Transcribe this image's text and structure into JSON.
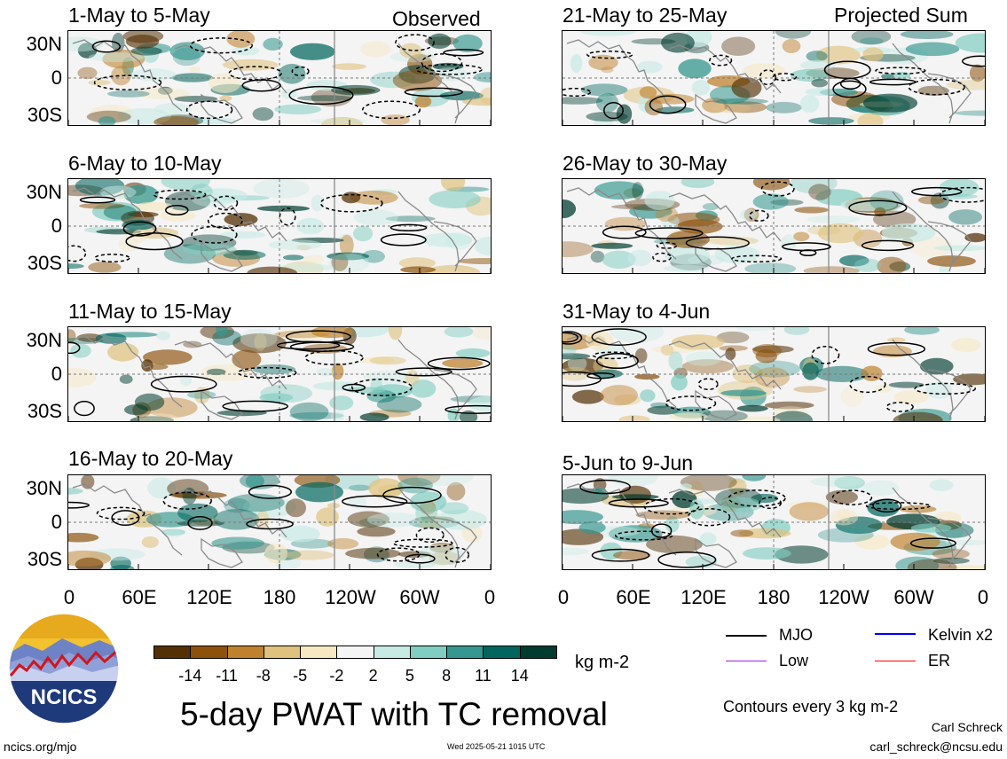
{
  "headers": {
    "observed": "Observed",
    "projected": "Projected Sum"
  },
  "panels_left": [
    {
      "title": "1-May to 5-May"
    },
    {
      "title": "6-May to 10-May"
    },
    {
      "title": "11-May to 15-May"
    },
    {
      "title": "16-May to 20-May"
    }
  ],
  "panels_right": [
    {
      "title": "21-May to 25-May"
    },
    {
      "title": "26-May to 30-May"
    },
    {
      "title": "31-May to 4-Jun"
    },
    {
      "title": "5-Jun to 9-Jun"
    }
  ],
  "y_ticks": [
    "30N",
    "0",
    "30S"
  ],
  "x_ticks": [
    "0",
    "60E",
    "120E",
    "180",
    "120W",
    "60W",
    "0"
  ],
  "colorbar": {
    "labels": [
      "-14",
      "-11",
      "-8",
      "-5",
      "-2",
      "2",
      "5",
      "8",
      "11",
      "14"
    ],
    "colors": [
      "#543005",
      "#8c510a",
      "#bf812d",
      "#dfc27d",
      "#f6e8c3",
      "#f5f5f5",
      "#c7eae5",
      "#80cdc1",
      "#35978f",
      "#01665e",
      "#003c30"
    ],
    "units": "kg m-2"
  },
  "logo": {
    "text": "NCICS"
  },
  "main_title": "5-day PWAT with TC removal",
  "legend": {
    "items": [
      {
        "label": "MJO",
        "color": "#000000"
      },
      {
        "label": "Kelvin x2",
        "color": "#0000ff"
      },
      {
        "label": "Low",
        "color": "#a020f0"
      },
      {
        "label": "ER",
        "color": "#ff0000"
      }
    ],
    "contours": "Contours every 3 kg m-2"
  },
  "footer": {
    "left": "ncics.org/mjo",
    "timestamp": "Wed 2025-05-21 1015 UTC",
    "author": "Carl Schreck",
    "email": "carl_schreck@ncsu.edu"
  }
}
